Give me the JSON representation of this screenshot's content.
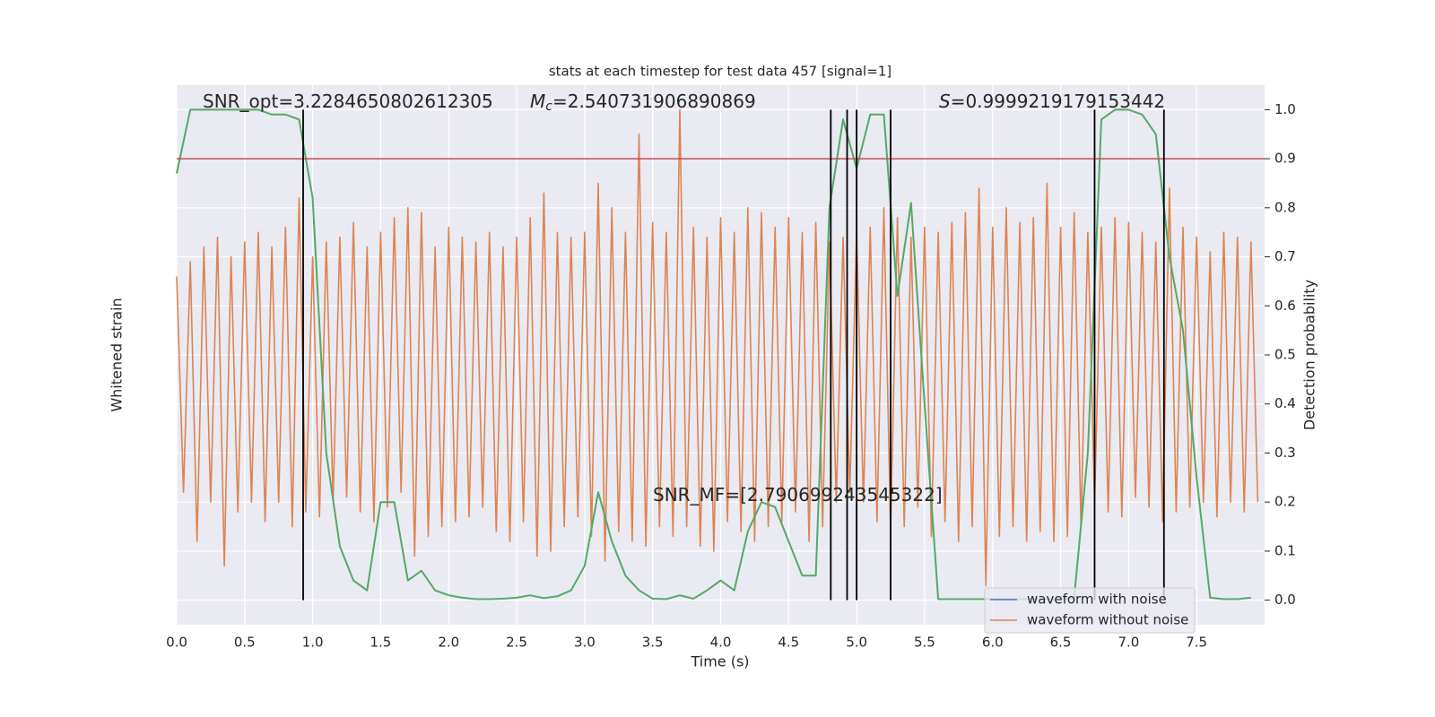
{
  "chart_data": {
    "type": "line",
    "title": "stats at each timestep for test data 457 [signal=1]",
    "x_label": "Time (s)",
    "y_label": "Whitened strain",
    "y2_label": "Detection probability",
    "xlim": [
      0,
      8
    ],
    "xticks": [
      {
        "value": 0,
        "label": "0.0"
      },
      {
        "value": 0.5,
        "label": "0.5"
      },
      {
        "value": 1,
        "label": "1.0"
      },
      {
        "value": 1.5,
        "label": "1.5"
      },
      {
        "value": 2,
        "label": "2.0"
      },
      {
        "value": 2.5,
        "label": "2.5"
      },
      {
        "value": 3,
        "label": "3.0"
      },
      {
        "value": 3.5,
        "label": "3.5"
      },
      {
        "value": 4,
        "label": "4.0"
      },
      {
        "value": 4.5,
        "label": "4.5"
      },
      {
        "value": 5,
        "label": "5.0"
      },
      {
        "value": 5.5,
        "label": "5.5"
      },
      {
        "value": 6,
        "label": "6.0"
      },
      {
        "value": 6.5,
        "label": "6.5"
      },
      {
        "value": 7,
        "label": "7.0"
      },
      {
        "value": 7.5,
        "label": "7.5"
      }
    ],
    "y2lim": [
      -0.05,
      1.05
    ],
    "y2ticks": [
      {
        "value": 0,
        "label": "0.0"
      },
      0.1,
      0.2,
      0.3,
      0.4,
      0.5,
      0.6,
      0.7,
      0.8,
      0.9,
      {
        "value": 1,
        "label": "1.0"
      }
    ],
    "grid": true,
    "legend": [
      {
        "name": "waveform with noise",
        "color": "#4c72b0"
      },
      {
        "name": "waveform without noise",
        "color": "#dd8452"
      }
    ],
    "legend_position": "lower right",
    "threshold": 0.9,
    "threshold_color": "#c44e52",
    "vlines": [
      0.93,
      4.81,
      4.93,
      5.0,
      5.25,
      6.75,
      7.26
    ],
    "vline_color": "#000000",
    "annotations": [
      {
        "text": "SNR_opt=3.2284650802612305"
      },
      {
        "symbol": "M",
        "subscript": "c",
        "text": "=2.540731906890869"
      },
      {
        "symbol": "S",
        "text": "=0.9999219179153442"
      },
      {
        "text": "SNR_MF=[2.790699243545322]"
      }
    ],
    "series": [
      {
        "name": "waveform without noise",
        "color": "#dd8452",
        "x": [
          0,
          0.05,
          0.1,
          0.15,
          0.2,
          0.25,
          0.3,
          0.35,
          0.4,
          0.45,
          0.5,
          0.55,
          0.6,
          0.65,
          0.7,
          0.75,
          0.8,
          0.85,
          0.9,
          0.95,
          1,
          1.05,
          1.1,
          1.15,
          1.2,
          1.25,
          1.3,
          1.35,
          1.4,
          1.45,
          1.5,
          1.55,
          1.6,
          1.65,
          1.7,
          1.75,
          1.8,
          1.85,
          1.9,
          1.95,
          2,
          2.05,
          2.1,
          2.15,
          2.2,
          2.25,
          2.3,
          2.35,
          2.4,
          2.45,
          2.5,
          2.55,
          2.6,
          2.65,
          2.7,
          2.75,
          2.8,
          2.85,
          2.9,
          2.95,
          3,
          3.05,
          3.1,
          3.15,
          3.2,
          3.25,
          3.3,
          3.35,
          3.4,
          3.45,
          3.5,
          3.55,
          3.6,
          3.65,
          3.7,
          3.75,
          3.8,
          3.85,
          3.9,
          3.95,
          4,
          4.05,
          4.1,
          4.15,
          4.2,
          4.25,
          4.3,
          4.35,
          4.4,
          4.45,
          4.5,
          4.55,
          4.6,
          4.65,
          4.7,
          4.75,
          4.8,
          4.85,
          4.9,
          4.95,
          5,
          5.05,
          5.1,
          5.15,
          5.2,
          5.25,
          5.3,
          5.35,
          5.4,
          5.45,
          5.5,
          5.55,
          5.6,
          5.65,
          5.7,
          5.75,
          5.8,
          5.85,
          5.9,
          5.95,
          6,
          6.05,
          6.1,
          6.15,
          6.2,
          6.25,
          6.3,
          6.35,
          6.4,
          6.45,
          6.5,
          6.55,
          6.6,
          6.65,
          6.7,
          6.75,
          6.8,
          6.85,
          6.9,
          6.95,
          7,
          7.05,
          7.1,
          7.15,
          7.2,
          7.25,
          7.3,
          7.35,
          7.4,
          7.45,
          7.5,
          7.55,
          7.6,
          7.65,
          7.7,
          7.75,
          7.8,
          7.85,
          7.9,
          7.95
        ],
        "values": [
          0.66,
          0.22,
          0.69,
          0.12,
          0.72,
          0.2,
          0.74,
          0.07,
          0.7,
          0.18,
          0.73,
          0.2,
          0.75,
          0.16,
          0.72,
          0.2,
          0.76,
          0.15,
          0.82,
          0.18,
          0.7,
          0.17,
          0.73,
          0.2,
          0.74,
          0.21,
          0.77,
          0.18,
          0.72,
          0.16,
          0.75,
          0.19,
          0.78,
          0.22,
          0.8,
          0.09,
          0.79,
          0.13,
          0.72,
          0.15,
          0.76,
          0.16,
          0.74,
          0.17,
          0.73,
          0.19,
          0.75,
          0.14,
          0.72,
          0.12,
          0.74,
          0.16,
          0.78,
          0.09,
          0.83,
          0.1,
          0.75,
          0.15,
          0.74,
          0.17,
          0.75,
          0.13,
          0.85,
          0.08,
          0.8,
          0.14,
          0.75,
          0.12,
          0.95,
          0.11,
          0.77,
          0.15,
          0.75,
          0.13,
          1.0,
          0.15,
          0.76,
          0.11,
          0.74,
          0.1,
          0.78,
          0.16,
          0.75,
          0.14,
          0.8,
          0.12,
          0.79,
          0.15,
          0.76,
          0.16,
          0.78,
          0.18,
          0.75,
          0.12,
          0.77,
          0.15,
          0.73,
          0.2,
          0.74,
          0.22,
          0.75,
          0.2,
          0.76,
          0.16,
          0.8,
          0.14,
          0.78,
          0.15,
          0.74,
          0.19,
          0.76,
          0.13,
          0.75,
          0.16,
          0.77,
          0.12,
          0.79,
          0.15,
          0.84,
          0.03,
          0.76,
          0.13,
          0.8,
          0.15,
          0.77,
          0.12,
          0.78,
          0.14,
          0.85,
          0.12,
          0.76,
          0.13,
          0.79,
          0.15,
          0.75,
          0.2,
          0.76,
          0.18,
          0.78,
          0.17,
          0.77,
          0.21,
          0.75,
          0.19,
          0.73,
          0.16,
          0.84,
          0.18,
          0.76,
          0.19,
          0.74,
          0.2,
          0.71,
          0.17,
          0.75,
          0.2,
          0.74,
          0.18,
          0.73,
          0.2
        ]
      },
      {
        "color": "#55a868",
        "axis": "y2",
        "x": [
          0,
          0.1,
          0.2,
          0.3,
          0.4,
          0.5,
          0.6,
          0.7,
          0.8,
          0.9,
          1,
          1.1,
          1.2,
          1.3,
          1.4,
          1.5,
          1.6,
          1.7,
          1.8,
          1.9,
          2,
          2.1,
          2.2,
          2.3,
          2.4,
          2.5,
          2.6,
          2.7,
          2.8,
          2.9,
          3,
          3.1,
          3.2,
          3.3,
          3.4,
          3.5,
          3.6,
          3.7,
          3.8,
          3.9,
          4,
          4.1,
          4.2,
          4.3,
          4.4,
          4.5,
          4.6,
          4.7,
          4.8,
          4.9,
          5,
          5.1,
          5.2,
          5.3,
          5.4,
          5.5,
          5.6,
          5.7,
          5.8,
          5.9,
          6,
          6.1,
          6.2,
          6.3,
          6.4,
          6.5,
          6.6,
          6.7,
          6.8,
          6.9,
          7,
          7.1,
          7.2,
          7.3,
          7.4,
          7.5,
          7.6,
          7.7,
          7.8,
          7.9
        ],
        "values": [
          0.87,
          1.0,
          1.0,
          1.0,
          1.0,
          1.0,
          1.0,
          0.99,
          0.99,
          0.98,
          0.82,
          0.3,
          0.11,
          0.04,
          0.02,
          0.2,
          0.2,
          0.04,
          0.06,
          0.02,
          0.01,
          0.005,
          0.002,
          0.002,
          0.003,
          0.005,
          0.01,
          0.004,
          0.008,
          0.02,
          0.07,
          0.22,
          0.12,
          0.05,
          0.02,
          0.003,
          0.002,
          0.01,
          0.003,
          0.02,
          0.04,
          0.02,
          0.14,
          0.2,
          0.19,
          0.12,
          0.05,
          0.05,
          0.8,
          0.98,
          0.88,
          0.99,
          0.99,
          0.62,
          0.81,
          0.4,
          0.002,
          0.002,
          0.002,
          0.002,
          0.002,
          0.002,
          0.002,
          0.002,
          0.002,
          0.002,
          0.005,
          0.3,
          0.98,
          1.0,
          1.0,
          0.99,
          0.95,
          0.7,
          0.55,
          0.25,
          0.005,
          0.002,
          0.002,
          0.005
        ]
      }
    ]
  }
}
